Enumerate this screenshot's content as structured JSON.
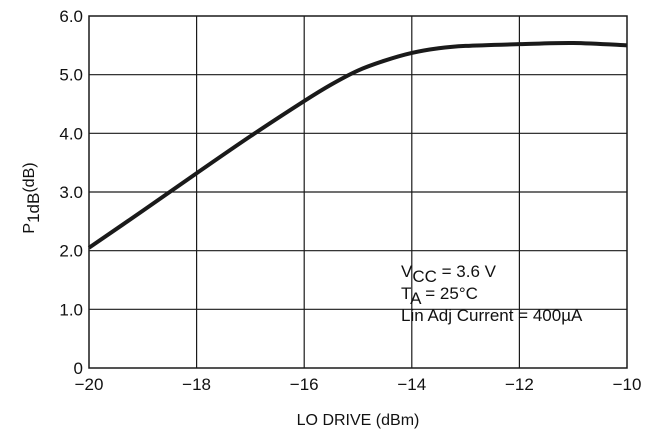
{
  "chart_data": {
    "type": "line",
    "title": "",
    "xlabel": "LO DRIVE (dBm)",
    "ylabel": {
      "main": "P",
      "sub": "1dB",
      "unit": "(dB)"
    },
    "xlim": [
      -20,
      -10
    ],
    "ylim": [
      0,
      6
    ],
    "grid": true,
    "x_ticks": [
      -20,
      -18,
      -16,
      -14,
      -12,
      -10
    ],
    "x_tick_labels": [
      "−20",
      "−18",
      "−16",
      "−14",
      "−12",
      "−10"
    ],
    "y_ticks": [
      0,
      1,
      2,
      3,
      4,
      5,
      6
    ],
    "y_tick_labels": [
      "0",
      "1.0",
      "2.0",
      "3.0",
      "4.0",
      "5.0",
      "6.0"
    ],
    "series": [
      {
        "color": "#1a1a1a",
        "x": [
          -20,
          -19,
          -18,
          -17,
          -16,
          -15.5,
          -15,
          -14.5,
          -14,
          -13.5,
          -13,
          -12,
          -11,
          -10
        ],
        "y": [
          2.05,
          2.68,
          3.32,
          3.95,
          4.55,
          4.83,
          5.07,
          5.24,
          5.37,
          5.45,
          5.49,
          5.52,
          5.54,
          5.5
        ]
      }
    ],
    "annotations": [
      {
        "main": "V",
        "sub": "CC",
        "rest": " = 3.6 V"
      },
      {
        "main": "T",
        "sub": "A",
        "rest": " = 25°C"
      },
      {
        "main": "Lin Adj Current = 400µA",
        "sub": "",
        "rest": ""
      }
    ]
  }
}
